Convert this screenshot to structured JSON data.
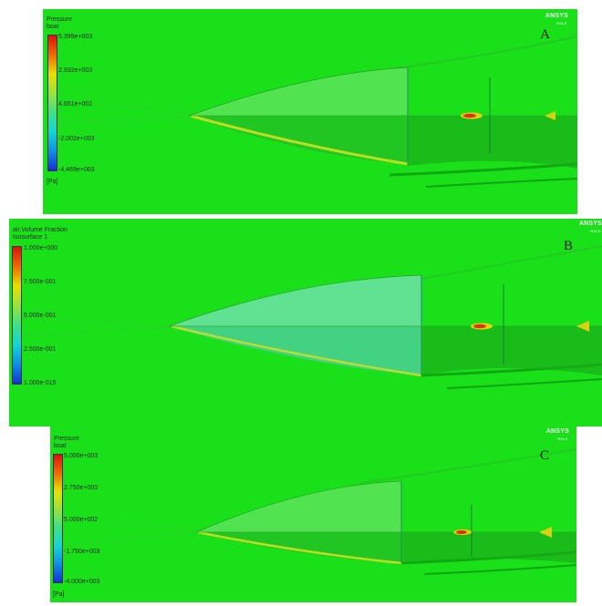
{
  "panels": [
    {
      "letter": "A",
      "legend_title": "Pressure",
      "legend_subtitle": "boat",
      "ticks": [
        "5.399e+003",
        "2.932e+003",
        "4.651e+002",
        "-2.002e+003",
        "-4.469e+003"
      ],
      "unit": "[Pa]",
      "brand": "ANSYS",
      "brand_sub": "R14.5"
    },
    {
      "letter": "B",
      "legend_title": "air.Volume Fraction",
      "legend_subtitle": "Isosurface 1",
      "ticks": [
        "1.000e+000",
        "7.500e-001",
        "5.000e-001",
        "2.500e-001",
        "1.000e-015"
      ],
      "unit": "",
      "brand": "ANSYS",
      "brand_sub": "R14.5"
    },
    {
      "letter": "C",
      "legend_title": "Pressure",
      "legend_subtitle": "boat",
      "ticks": [
        "5.000e+003",
        "2.750e+003",
        "5.000e+002",
        "-1.750e+003",
        "-4.000e+003"
      ],
      "unit": "[Pa]",
      "brand": "ANSYS",
      "brand_sub": "R14.5"
    }
  ],
  "colors": {
    "background_green": "#19e019",
    "hull_cyan": "#44d69a",
    "hot_red": "#e03010"
  }
}
